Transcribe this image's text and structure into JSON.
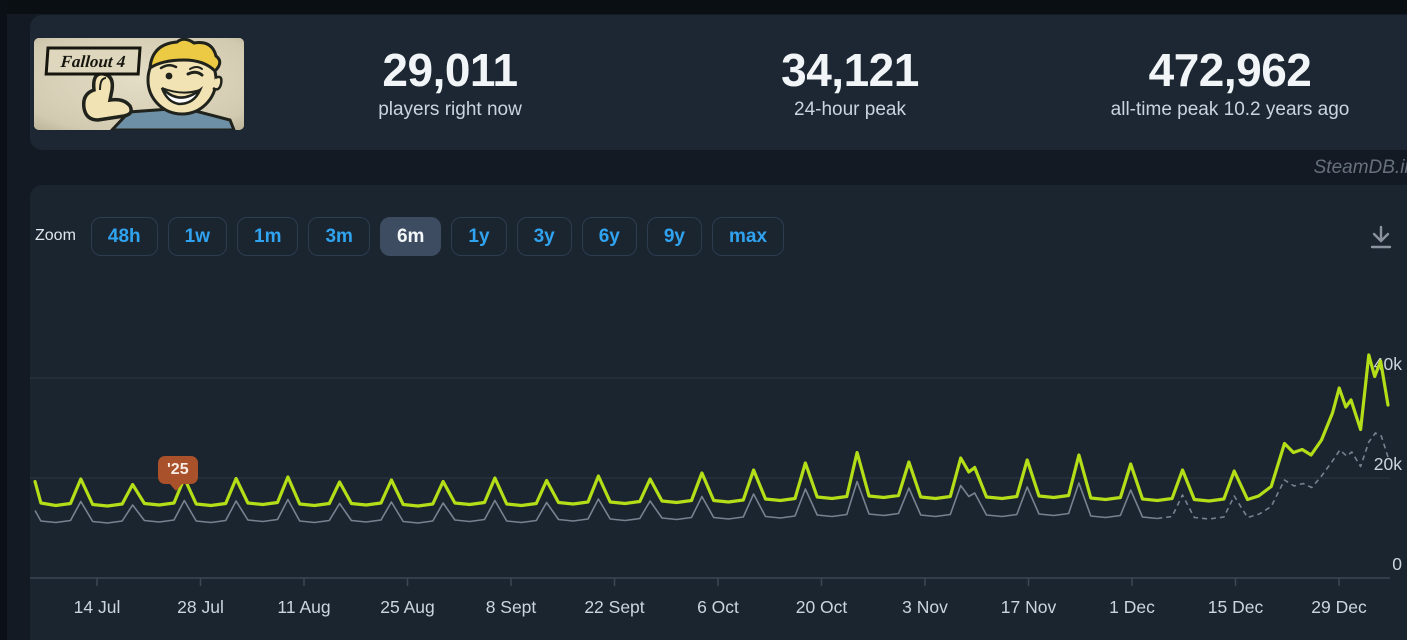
{
  "header": {
    "capsule": {
      "game": "Fallout 4",
      "logo_text": "Fallout 4"
    },
    "stats": [
      {
        "value": "29,011",
        "label": "players right now"
      },
      {
        "value": "34,121",
        "label": "24-hour peak"
      },
      {
        "value": "472,962",
        "label": "all-time peak 10.2 years ago"
      }
    ]
  },
  "watermark": "SteamDB.in",
  "toolbar": {
    "zoom_label": "Zoom",
    "ranges": [
      "48h",
      "1w",
      "1m",
      "3m",
      "6m",
      "1y",
      "3y",
      "6y",
      "9y",
      "max"
    ],
    "selected": "6m"
  },
  "colors": {
    "players_line": "#b4de17",
    "trend_line": "#76828f",
    "accent_blue": "#30a3f0",
    "badge": "#a8512b",
    "panel": "#1c2733"
  },
  "chart_data": {
    "type": "line",
    "title": "",
    "xlabel": "",
    "ylabel": "",
    "grid": "horizontal",
    "legend_position": "none",
    "x_tick_labels": [
      "14 Jul",
      "28 Jul",
      "11 Aug",
      "25 Aug",
      "8 Sept",
      "22 Sept",
      "6 Oct",
      "20 Oct",
      "3 Nov",
      "17 Nov",
      "1 Dec",
      "15 Dec",
      "29 Dec"
    ],
    "y_tick_labels": [
      "40k",
      "20k",
      "0"
    ],
    "y_ticks_thousands": [
      40,
      20,
      0
    ],
    "ylim_thousands": [
      0,
      48
    ],
    "annotation": {
      "label": "'25",
      "color": "#a8512b"
    },
    "series": [
      {
        "name": "players",
        "color": "#b4de17",
        "style": "solid",
        "points": [
          [
            0,
            19.3
          ],
          [
            0.8,
            15.0
          ],
          [
            2.8,
            14.5
          ],
          [
            4.8,
            14.9
          ],
          [
            6.2,
            19.8
          ],
          [
            7.8,
            14.7
          ],
          [
            9.8,
            14.4
          ],
          [
            11.8,
            14.8
          ],
          [
            13.2,
            18.7
          ],
          [
            14.8,
            14.9
          ],
          [
            16.8,
            14.6
          ],
          [
            18.8,
            15.0
          ],
          [
            20.2,
            20.0
          ],
          [
            21.8,
            14.8
          ],
          [
            23.8,
            14.5
          ],
          [
            25.8,
            14.9
          ],
          [
            27.2,
            19.9
          ],
          [
            28.8,
            15.0
          ],
          [
            30.8,
            14.7
          ],
          [
            32.8,
            15.1
          ],
          [
            34.2,
            20.2
          ],
          [
            35.8,
            14.8
          ],
          [
            37.8,
            14.5
          ],
          [
            39.8,
            14.9
          ],
          [
            41.2,
            19.2
          ],
          [
            42.8,
            14.9
          ],
          [
            44.8,
            14.6
          ],
          [
            46.8,
            15.0
          ],
          [
            48.2,
            19.6
          ],
          [
            49.8,
            14.7
          ],
          [
            51.8,
            14.4
          ],
          [
            53.8,
            14.8
          ],
          [
            55.2,
            19.3
          ],
          [
            56.8,
            15.0
          ],
          [
            58.8,
            14.7
          ],
          [
            60.8,
            15.1
          ],
          [
            62.2,
            20.0
          ],
          [
            63.8,
            14.8
          ],
          [
            65.8,
            14.5
          ],
          [
            67.8,
            14.9
          ],
          [
            69.2,
            19.5
          ],
          [
            70.8,
            15.1
          ],
          [
            72.8,
            14.8
          ],
          [
            74.8,
            15.2
          ],
          [
            76.2,
            20.4
          ],
          [
            77.8,
            15.2
          ],
          [
            79.8,
            14.9
          ],
          [
            81.8,
            15.3
          ],
          [
            83.2,
            19.8
          ],
          [
            84.8,
            15.4
          ],
          [
            86.8,
            15.1
          ],
          [
            88.8,
            15.5
          ],
          [
            90.2,
            21.0
          ],
          [
            91.8,
            15.5
          ],
          [
            93.8,
            15.2
          ],
          [
            95.8,
            15.6
          ],
          [
            97.2,
            21.6
          ],
          [
            98.8,
            15.8
          ],
          [
            100.8,
            15.5
          ],
          [
            102.8,
            15.9
          ],
          [
            104.2,
            23.0
          ],
          [
            105.8,
            16.2
          ],
          [
            107.8,
            15.9
          ],
          [
            109.8,
            16.3
          ],
          [
            111.2,
            25.1
          ],
          [
            112.8,
            16.4
          ],
          [
            114.8,
            16.1
          ],
          [
            116.8,
            16.5
          ],
          [
            118.2,
            23.2
          ],
          [
            119.8,
            16.2
          ],
          [
            121.8,
            15.9
          ],
          [
            123.8,
            16.3
          ],
          [
            125.2,
            24.0
          ],
          [
            126.3,
            21.2
          ],
          [
            127.1,
            22.1
          ],
          [
            128.7,
            16.2
          ],
          [
            130.8,
            15.9
          ],
          [
            132.8,
            16.3
          ],
          [
            134.2,
            23.6
          ],
          [
            135.8,
            16.4
          ],
          [
            137.8,
            16.1
          ],
          [
            139.8,
            16.5
          ],
          [
            141.2,
            24.6
          ],
          [
            142.8,
            16.0
          ],
          [
            144.8,
            15.7
          ],
          [
            146.8,
            16.1
          ],
          [
            148.2,
            22.8
          ],
          [
            149.8,
            15.8
          ],
          [
            151.8,
            15.5
          ],
          [
            153.8,
            15.9
          ],
          [
            155.2,
            21.6
          ],
          [
            156.8,
            15.7
          ],
          [
            158.8,
            15.4
          ],
          [
            160.8,
            15.8
          ],
          [
            162.2,
            21.4
          ],
          [
            164.0,
            15.7
          ],
          [
            165.5,
            16.4
          ],
          [
            167.2,
            18.3
          ],
          [
            169.0,
            26.9
          ],
          [
            170.2,
            25.1
          ],
          [
            171.4,
            25.7
          ],
          [
            172.6,
            24.6
          ],
          [
            174.0,
            27.6
          ],
          [
            175.5,
            33.0
          ],
          [
            176.4,
            38.0
          ],
          [
            177.3,
            34.2
          ],
          [
            178.0,
            35.6
          ],
          [
            179.3,
            29.7
          ],
          [
            180.4,
            44.6
          ],
          [
            181.2,
            40.3
          ],
          [
            182.0,
            43.4
          ],
          [
            183.0,
            34.6
          ]
        ]
      },
      {
        "name": "trend",
        "color": "#76828f",
        "style": "solid-then-dashed",
        "solid_until_day": 152,
        "points": [
          [
            0,
            13.5
          ],
          [
            0.8,
            11.4
          ],
          [
            2.8,
            11.1
          ],
          [
            4.8,
            11.5
          ],
          [
            6.2,
            15.3
          ],
          [
            7.8,
            11.3
          ],
          [
            9.8,
            11.0
          ],
          [
            11.8,
            11.4
          ],
          [
            13.2,
            14.6
          ],
          [
            14.8,
            11.5
          ],
          [
            16.8,
            11.2
          ],
          [
            18.8,
            11.6
          ],
          [
            20.2,
            15.5
          ],
          [
            21.8,
            11.4
          ],
          [
            23.8,
            11.1
          ],
          [
            25.8,
            11.5
          ],
          [
            27.2,
            15.4
          ],
          [
            28.8,
            11.6
          ],
          [
            30.8,
            11.3
          ],
          [
            32.8,
            11.7
          ],
          [
            34.2,
            15.7
          ],
          [
            35.8,
            11.4
          ],
          [
            37.8,
            11.1
          ],
          [
            39.8,
            11.5
          ],
          [
            41.2,
            14.9
          ],
          [
            42.8,
            11.5
          ],
          [
            44.8,
            11.2
          ],
          [
            46.8,
            11.6
          ],
          [
            48.2,
            15.2
          ],
          [
            49.8,
            11.3
          ],
          [
            51.8,
            11.0
          ],
          [
            53.8,
            11.4
          ],
          [
            55.2,
            15.0
          ],
          [
            56.8,
            11.6
          ],
          [
            58.8,
            11.3
          ],
          [
            60.8,
            11.7
          ],
          [
            62.2,
            15.5
          ],
          [
            63.8,
            11.4
          ],
          [
            65.8,
            11.1
          ],
          [
            67.8,
            11.5
          ],
          [
            69.2,
            15.1
          ],
          [
            70.8,
            11.7
          ],
          [
            72.8,
            11.4
          ],
          [
            74.8,
            11.8
          ],
          [
            76.2,
            15.8
          ],
          [
            77.8,
            11.8
          ],
          [
            79.8,
            11.5
          ],
          [
            81.8,
            11.9
          ],
          [
            83.2,
            15.4
          ],
          [
            84.8,
            12.0
          ],
          [
            86.8,
            11.7
          ],
          [
            88.8,
            12.1
          ],
          [
            90.2,
            16.3
          ],
          [
            91.8,
            12.1
          ],
          [
            93.8,
            11.8
          ],
          [
            95.8,
            12.2
          ],
          [
            97.2,
            16.8
          ],
          [
            98.8,
            12.3
          ],
          [
            100.8,
            12.0
          ],
          [
            102.8,
            12.4
          ],
          [
            104.2,
            17.8
          ],
          [
            105.8,
            12.6
          ],
          [
            107.8,
            12.3
          ],
          [
            109.8,
            12.7
          ],
          [
            111.2,
            19.3
          ],
          [
            112.8,
            12.8
          ],
          [
            114.8,
            12.5
          ],
          [
            116.8,
            12.9
          ],
          [
            118.2,
            18.0
          ],
          [
            119.8,
            12.6
          ],
          [
            121.8,
            12.3
          ],
          [
            123.8,
            12.7
          ],
          [
            125.2,
            18.5
          ],
          [
            126.3,
            16.3
          ],
          [
            127.1,
            17.0
          ],
          [
            128.7,
            12.6
          ],
          [
            130.8,
            12.3
          ],
          [
            132.8,
            12.7
          ],
          [
            134.2,
            18.2
          ],
          [
            135.8,
            12.8
          ],
          [
            137.8,
            12.5
          ],
          [
            139.8,
            12.9
          ],
          [
            141.2,
            19.0
          ],
          [
            142.8,
            12.4
          ],
          [
            144.8,
            12.1
          ],
          [
            146.8,
            12.5
          ],
          [
            148.2,
            17.6
          ],
          [
            149.8,
            12.2
          ],
          [
            151.8,
            11.9
          ],
          [
            153.8,
            12.3
          ],
          [
            155.2,
            16.6
          ],
          [
            156.8,
            12.1
          ],
          [
            158.8,
            11.8
          ],
          [
            160.8,
            12.2
          ],
          [
            162.2,
            16.4
          ],
          [
            164.0,
            12.1
          ],
          [
            165.6,
            12.8
          ],
          [
            167.2,
            14.3
          ],
          [
            169.0,
            19.6
          ],
          [
            170.3,
            18.4
          ],
          [
            171.5,
            18.9
          ],
          [
            172.7,
            18.1
          ],
          [
            174.0,
            20.4
          ],
          [
            175.5,
            23.4
          ],
          [
            176.5,
            25.6
          ],
          [
            177.4,
            24.4
          ],
          [
            178.1,
            25.2
          ],
          [
            179.3,
            22.3
          ],
          [
            180.4,
            27.2
          ],
          [
            181.3,
            29.0
          ],
          [
            182.1,
            28.4
          ],
          [
            183.0,
            24.2
          ]
        ]
      }
    ]
  }
}
